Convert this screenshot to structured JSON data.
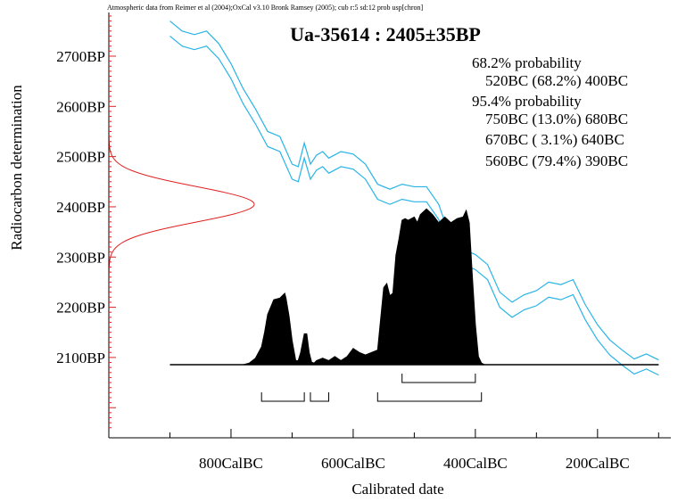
{
  "header": "Atmospheric data from Reimer et al (2004);OxCal v3.10 Bronk Ramsey (2005); cub r:5 sd:12 prob usp[chron]",
  "colors": {
    "calibration_curve": "#29b4e6",
    "radiocarbon_distribution": "#e02020",
    "probability_fill": "#000000",
    "axis": "#000000"
  },
  "probabilities": [
    "68.2% probability",
    "520BC (68.2%) 400BC",
    "95.4% probability",
    "750BC (13.0%) 680BC",
    "670BC ( 3.1%) 640BC",
    "560BC (79.4%) 390BC"
  ],
  "chart_data": {
    "type": "area",
    "title": "Ua-35614 : 2405±35BP",
    "xlabel": "Calibrated date",
    "ylabel": "Radiocarbon determination",
    "x_ticks": [
      {
        "value": -800,
        "label": "800CalBC"
      },
      {
        "value": -600,
        "label": "600CalBC"
      },
      {
        "value": -400,
        "label": "400CalBC"
      },
      {
        "value": -200,
        "label": "200CalBC"
      }
    ],
    "x_minor_ticks": [
      -900,
      -700,
      -500,
      -300,
      -100
    ],
    "y_ticks": [
      {
        "value": 2700,
        "label": "2700BP"
      },
      {
        "value": 2600,
        "label": "2600BP"
      },
      {
        "value": 2500,
        "label": "2500BP"
      },
      {
        "value": 2400,
        "label": "2400BP"
      },
      {
        "value": 2300,
        "label": "2300BP"
      },
      {
        "value": 2200,
        "label": "2200BP"
      },
      {
        "value": 2100,
        "label": "2100BP"
      }
    ],
    "xlim": [
      -1000,
      -80
    ],
    "ylim": [
      1940,
      2787
    ],
    "radiocarbon_date": {
      "mean": 2405,
      "sd": 35
    },
    "calibration_curve": {
      "x": [
        -900,
        -880,
        -860,
        -840,
        -820,
        -800,
        -780,
        -760,
        -740,
        -720,
        -700,
        -690,
        -680,
        -670,
        -660,
        -650,
        -640,
        -620,
        -600,
        -580,
        -560,
        -540,
        -520,
        -500,
        -480,
        -460,
        -440,
        -420,
        -400,
        -380,
        -360,
        -340,
        -320,
        -300,
        -280,
        -260,
        -240,
        -220,
        -200,
        -180,
        -160,
        -140,
        -120,
        -100
      ],
      "y": [
        2755,
        2735,
        2728,
        2735,
        2710,
        2670,
        2620,
        2580,
        2535,
        2525,
        2470,
        2465,
        2512,
        2470,
        2488,
        2495,
        2482,
        2495,
        2490,
        2470,
        2430,
        2420,
        2430,
        2425,
        2425,
        2390,
        2320,
        2300,
        2290,
        2270,
        2215,
        2195,
        2210,
        2218,
        2235,
        2230,
        2240,
        2190,
        2150,
        2120,
        2100,
        2082,
        2092,
        2080
      ],
      "band": 15
    },
    "probability_distribution": {
      "x": [
        -900,
        -800,
        -780,
        -770,
        -760,
        -750,
        -745,
        -740,
        -730,
        -720,
        -712,
        -710,
        -705,
        -700,
        -694,
        -690,
        -686,
        -680,
        -676,
        -672,
        -668,
        -664,
        -660,
        -650,
        -640,
        -630,
        -620,
        -610,
        -600,
        -590,
        -580,
        -570,
        -560,
        -550,
        -545,
        -540,
        -535,
        -530,
        -525,
        -520,
        -515,
        -510,
        -500,
        -495,
        -490,
        -480,
        -470,
        -460,
        -450,
        -440,
        -430,
        -420,
        -415,
        -410,
        -405,
        -400,
        -395,
        -390,
        -385,
        -380,
        -100
      ],
      "y": [
        0,
        0,
        0,
        0.02,
        0.08,
        0.22,
        0.4,
        0.62,
        0.8,
        0.82,
        0.88,
        0.82,
        0.6,
        0.3,
        0.05,
        0.05,
        0.15,
        0.38,
        0.38,
        0.15,
        0.03,
        0.02,
        0.05,
        0.08,
        0.05,
        0.1,
        0.05,
        0.1,
        0.2,
        0.15,
        0.12,
        0.15,
        0.18,
        0.95,
        1.0,
        0.85,
        0.88,
        1.35,
        1.55,
        1.78,
        1.8,
        1.78,
        1.82,
        1.75,
        1.85,
        1.92,
        1.85,
        1.75,
        1.82,
        1.75,
        1.8,
        1.82,
        1.9,
        1.75,
        1.1,
        0.5,
        0.1,
        0.02,
        0,
        0,
        0
      ]
    },
    "ranges_68": [
      [
        -520,
        -400
      ]
    ],
    "ranges_95": [
      [
        -750,
        -680
      ],
      [
        -670,
        -640
      ],
      [
        -560,
        -390
      ]
    ]
  }
}
